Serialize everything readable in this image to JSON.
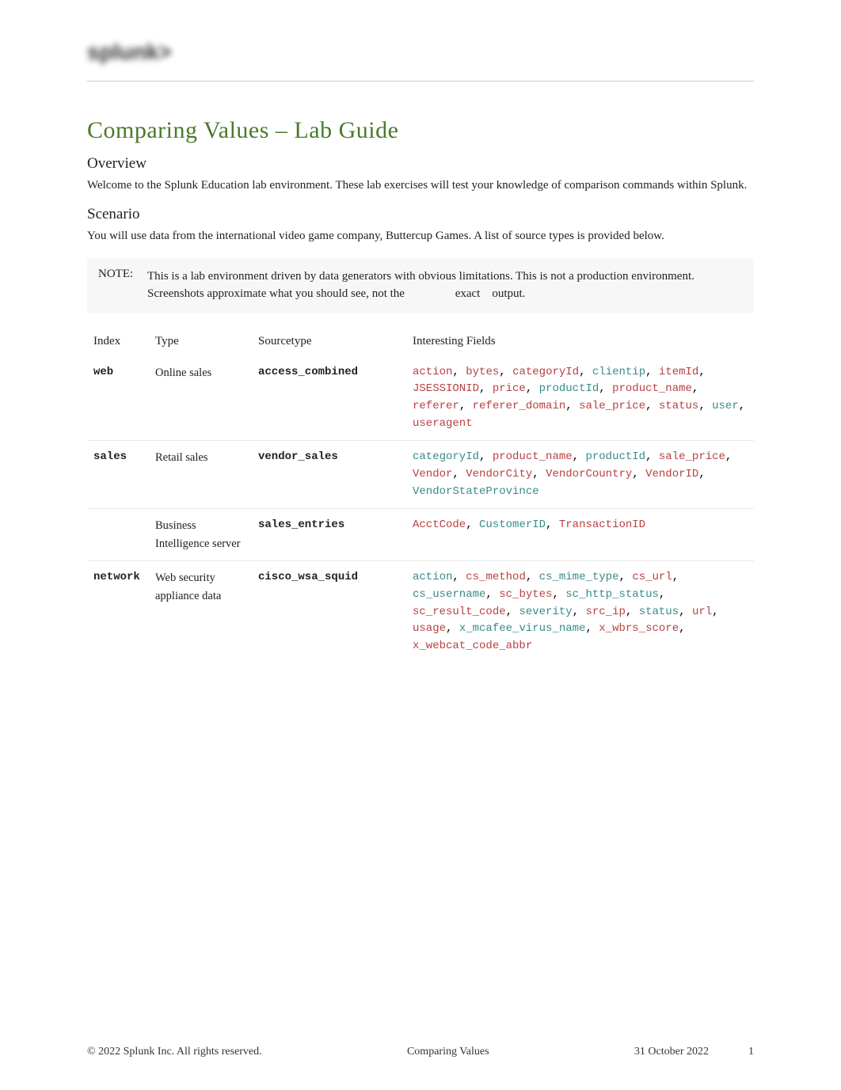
{
  "logo_text": "splunk>",
  "title": "Comparing Values    – Lab Guide",
  "overview": {
    "heading": "Overview",
    "text": "Welcome to the Splunk Education lab environment. These lab exercises will test your knowledge of comparison commands within Splunk."
  },
  "scenario": {
    "heading": "Scenario",
    "text": "You will use data from the international video game company, Buttercup Games. A list of source types is provided below."
  },
  "note": {
    "label": "NOTE:",
    "text_part1": "This is a lab environment driven by data generators with obvious limitations. This is not a production environment. Screenshots approximate what you should see, not the",
    "text_exact": "exact",
    "text_output": "output."
  },
  "table": {
    "headers": {
      "index": "Index",
      "type": "Type",
      "sourcetype": "Sourcetype",
      "fields": "Interesting Fields"
    },
    "rows": [
      {
        "index": "web",
        "type": "Online sales",
        "sourcetype": "access_combined",
        "fields": [
          {
            "t": "action",
            "c": "red"
          },
          {
            "t": ", "
          },
          {
            "t": "bytes",
            "c": "red"
          },
          {
            "t": ", "
          },
          {
            "t": "categoryId",
            "c": "red"
          },
          {
            "t": ", "
          },
          {
            "t": "clientip",
            "c": "teal"
          },
          {
            "t": ", "
          },
          {
            "t": "itemId",
            "c": "red"
          },
          {
            "t": ", "
          },
          {
            "t": "JSESSIONID",
            "c": "red"
          },
          {
            "t": ", "
          },
          {
            "t": "price",
            "c": "red"
          },
          {
            "t": ", "
          },
          {
            "t": "productId",
            "c": "teal"
          },
          {
            "t": ", "
          },
          {
            "t": "product_name",
            "c": "red"
          },
          {
            "t": ", "
          },
          {
            "t": "referer",
            "c": "red"
          },
          {
            "t": ", "
          },
          {
            "t": "referer_domain",
            "c": "red"
          },
          {
            "t": ", "
          },
          {
            "t": "sale_price",
            "c": "red"
          },
          {
            "t": ", "
          },
          {
            "t": "status",
            "c": "red"
          },
          {
            "t": ", "
          },
          {
            "t": "user",
            "c": "teal"
          },
          {
            "t": ", "
          },
          {
            "t": "useragent",
            "c": "red"
          }
        ]
      },
      {
        "index": "sales",
        "type": "Retail sales",
        "sourcetype": "vendor_sales",
        "fields": [
          {
            "t": "categoryId",
            "c": "teal"
          },
          {
            "t": ", "
          },
          {
            "t": "product_name",
            "c": "red"
          },
          {
            "t": ", "
          },
          {
            "t": "productId",
            "c": "teal"
          },
          {
            "t": ", "
          },
          {
            "t": "sale_price",
            "c": "red"
          },
          {
            "t": ", "
          },
          {
            "t": "Vendor",
            "c": "red"
          },
          {
            "t": ", "
          },
          {
            "t": "VendorCity",
            "c": "red"
          },
          {
            "t": ", "
          },
          {
            "t": "VendorCountry",
            "c": "red"
          },
          {
            "t": ", "
          },
          {
            "t": "VendorID",
            "c": "red"
          },
          {
            "t": ", "
          },
          {
            "t": "VendorStateProvince",
            "c": "teal"
          }
        ]
      },
      {
        "index": "",
        "type": "Business Intelligence server",
        "sourcetype": "sales_entries",
        "fields": [
          {
            "t": "AcctCode",
            "c": "red"
          },
          {
            "t": ", "
          },
          {
            "t": "CustomerID",
            "c": "teal"
          },
          {
            "t": ", "
          },
          {
            "t": "TransactionID",
            "c": "red"
          }
        ]
      },
      {
        "index": "network",
        "type": "Web security appliance data",
        "sourcetype": "cisco_wsa_squid",
        "fields": [
          {
            "t": "action",
            "c": "teal"
          },
          {
            "t": ", "
          },
          {
            "t": "cs_method",
            "c": "red"
          },
          {
            "t": ", "
          },
          {
            "t": "cs_mime_type",
            "c": "teal"
          },
          {
            "t": ", "
          },
          {
            "t": "cs_url",
            "c": "red"
          },
          {
            "t": ", "
          },
          {
            "t": "cs_username",
            "c": "teal"
          },
          {
            "t": ", "
          },
          {
            "t": "sc_bytes",
            "c": "red"
          },
          {
            "t": ", "
          },
          {
            "t": "sc_http_status",
            "c": "teal"
          },
          {
            "t": ", "
          },
          {
            "t": "sc_result_code",
            "c": "red"
          },
          {
            "t": ", "
          },
          {
            "t": "severity",
            "c": "teal"
          },
          {
            "t": ", "
          },
          {
            "t": "src_ip",
            "c": "red"
          },
          {
            "t": ", "
          },
          {
            "t": "status",
            "c": "teal"
          },
          {
            "t": ", "
          },
          {
            "t": "url",
            "c": "red"
          },
          {
            "t": ", "
          },
          {
            "t": "usage",
            "c": "red"
          },
          {
            "t": ", "
          },
          {
            "t": "x_mcafee_virus_name",
            "c": "teal"
          },
          {
            "t": ", "
          },
          {
            "t": "x_wbrs_score",
            "c": "red"
          },
          {
            "t": ", "
          },
          {
            "t": "x_webcat_code_abbr",
            "c": "red"
          }
        ]
      }
    ]
  },
  "footer": {
    "left": "© 2022 Splunk Inc. All rights reserved.",
    "center": "Comparing Values",
    "date": "31 October 2022",
    "page": "1"
  }
}
